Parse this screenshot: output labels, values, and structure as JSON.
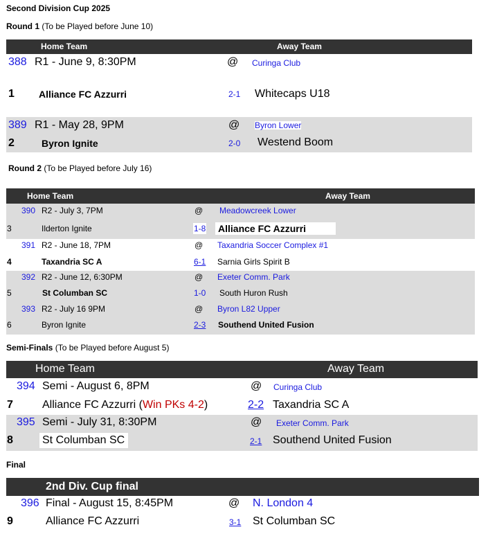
{
  "title": "Second Division Cup 2025",
  "colors": {
    "header_bg": "#333333",
    "band_bg": "#dcdcdc",
    "link": "#1a1adf",
    "pk_note": "#c00000"
  },
  "round1": {
    "label": "Round 1",
    "note": "(To be Played before June 10)",
    "home_header": "Home Team",
    "away_header": "Away Team",
    "games": [
      {
        "id": "388",
        "when": "R1 - June 9, 8:30PM",
        "at": "@",
        "venue": "Curinga Club",
        "num": "1",
        "home": "Alliance FC Azzurri",
        "score": "2-1",
        "away": "Whitecaps U18"
      },
      {
        "id": "389",
        "when": "R1 - May 28, 9PM",
        "at": "@",
        "venue": "Byron Lower",
        "num": "2",
        "home": "Byron Ignite",
        "score": "2-0",
        "away": "Westend Boom"
      }
    ]
  },
  "round2": {
    "label": "Round 2",
    "note": "(To be Played before July 16)",
    "home_header": "Home Team",
    "away_header": "Away Team",
    "games": [
      {
        "id": "390",
        "when": "R2 - July 3, 7PM",
        "at": "@",
        "venue": "Meadowcreek Lower",
        "num": "3",
        "home": "Ilderton Ignite",
        "score": "1-8",
        "away": "Alliance FC Azzurri"
      },
      {
        "id": "391",
        "when": "R2 - June 18, 7PM",
        "at": "@",
        "venue": "Taxandria Soccer Complex #1",
        "num": "4",
        "home": "Taxandria SC A",
        "score": "6-1",
        "away": "Sarnia Girls Spirit B"
      },
      {
        "id": "392",
        "when": "R2 - June 12, 6:30PM",
        "at": "@",
        "venue": "Exeter Comm. Park",
        "num": "5",
        "home": "St Columban SC",
        "score": "1-0",
        "away": "South Huron Rush"
      },
      {
        "id": "393",
        "when": "R2 - July 16 9PM",
        "at": "@",
        "venue": "Byron L82 Upper",
        "num": "6",
        "home": "Byron Ignite",
        "score": "2-3",
        "away": "Southend United Fusion"
      }
    ]
  },
  "semis": {
    "label": "Semi-Finals",
    "note": "(To be Played before August 5)",
    "home_header": "Home Team",
    "away_header": "Away Team",
    "games": [
      {
        "id": "394",
        "when": "Semi - August 6, 8PM",
        "at": "@",
        "venue": "Curinga Club",
        "num": "7",
        "home": "Alliance FC Azzurri",
        "pk_open": " (",
        "pk": "Win PKs 4-2",
        "pk_close": ")",
        "score": "2-2",
        "away": "Taxandria SC A"
      },
      {
        "id": "395",
        "when": "Semi - July 31, 8:30PM",
        "at": "@",
        "venue": "Exeter Comm. Park",
        "num": "8",
        "home": "St Columban SC",
        "score": "2-1",
        "away": "Southend United Fusion"
      }
    ]
  },
  "final": {
    "label": "Final",
    "header": "2nd Div. Cup final",
    "games": [
      {
        "id": "396",
        "when": "Final - August 15, 8:45PM",
        "at": "@",
        "venue": "N. London 4",
        "num": "9",
        "home": "Alliance FC Azzurri",
        "score": "3-1",
        "away": "St Columban SC"
      }
    ]
  }
}
